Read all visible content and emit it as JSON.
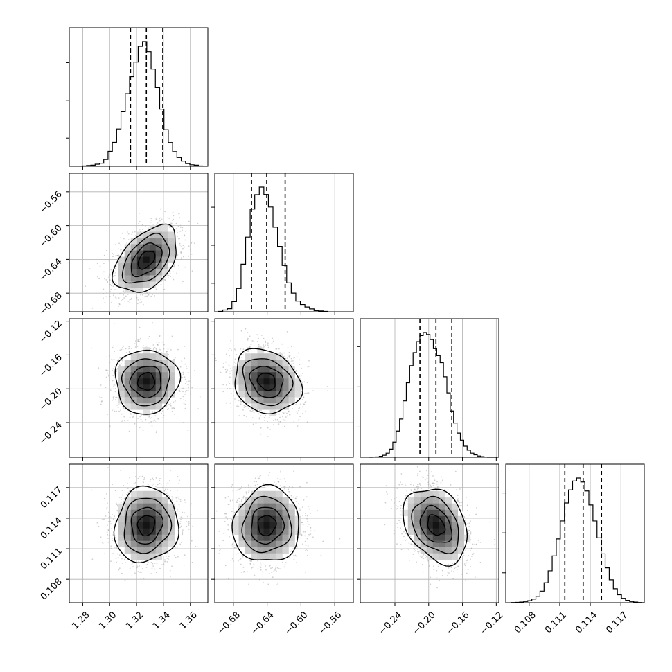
{
  "chart_data": {
    "type": "corner",
    "title": "",
    "parameters": [
      "",
      "",
      "",
      ""
    ],
    "grid": true,
    "quantile_lines": "dashed",
    "ranges": [
      [
        1.27,
        1.373
      ],
      [
        -0.702,
        -0.538
      ],
      [
        -0.281,
        -0.117
      ],
      [
        0.1057,
        0.1193
      ]
    ],
    "tick_labels": [
      [
        "1.28",
        "1.30",
        "1.32",
        "1.34",
        "1.36"
      ],
      [
        "−0.68",
        "−0.64",
        "−0.60",
        "−0.56"
      ],
      [
        "−0.24",
        "−0.20",
        "−0.16",
        "−0.12"
      ],
      [
        "0.108",
        "0.111",
        "0.114",
        "0.117"
      ]
    ],
    "tick_values": [
      [
        1.28,
        1.3,
        1.32,
        1.34,
        1.36
      ],
      [
        -0.68,
        -0.64,
        -0.6,
        -0.56
      ],
      [
        -0.24,
        -0.2,
        -0.16,
        -0.12
      ],
      [
        0.108,
        0.111,
        0.114,
        0.117
      ]
    ],
    "quantiles": [
      [
        1.3155,
        1.3273,
        1.3395
      ],
      [
        -0.6585,
        -0.6405,
        -0.6187
      ],
      [
        -0.2104,
        -0.1914,
        -0.1726
      ],
      [
        0.1115,
        0.1133,
        0.1151
      ]
    ],
    "histograms": [
      {
        "bin_edges": [
          1.2796,
          1.2828,
          1.286,
          1.2892,
          1.2924,
          1.2956,
          1.2988,
          1.302,
          1.3052,
          1.3084,
          1.3116,
          1.3148,
          1.318,
          1.3212,
          1.3244,
          1.3276,
          1.3308,
          1.334,
          1.3372,
          1.3404,
          1.3436,
          1.3468,
          1.35,
          1.3532,
          1.3564,
          1.3596,
          1.3628,
          1.366,
          1.3692
        ],
        "counts": [
          2,
          4,
          6,
          11,
          16,
          36,
          79,
          127,
          198,
          292,
          386,
          476,
          553,
          636,
          662,
          608,
          516,
          418,
          303,
          194,
          126,
          78,
          47,
          27,
          14,
          8,
          6,
          2
        ]
      },
      {
        "bin_edges": [
          -0.6979,
          -0.6925,
          -0.6871,
          -0.6817,
          -0.6763,
          -0.6709,
          -0.6655,
          -0.6601,
          -0.6547,
          -0.6493,
          -0.6439,
          -0.6385,
          -0.6331,
          -0.6277,
          -0.6223,
          -0.6169,
          -0.6115,
          -0.6061,
          -0.6007,
          -0.5953,
          -0.5899,
          -0.5845,
          -0.5791,
          -0.5737,
          -0.5683
        ],
        "counts": [
          2,
          9,
          16,
          53,
          123,
          250,
          393,
          540,
          616,
          656,
          617,
          551,
          445,
          344,
          243,
          152,
          98,
          56,
          38,
          25,
          15,
          6,
          4,
          2
        ]
      },
      {
        "bin_edges": [
          -0.2705,
          -0.2665,
          -0.2625,
          -0.2585,
          -0.2545,
          -0.2505,
          -0.2465,
          -0.2425,
          -0.2385,
          -0.2345,
          -0.2305,
          -0.2265,
          -0.2225,
          -0.2185,
          -0.2145,
          -0.2105,
          -0.2065,
          -0.2025,
          -0.1985,
          -0.1945,
          -0.1905,
          -0.1865,
          -0.1825,
          -0.1785,
          -0.1745,
          -0.1705,
          -0.1665,
          -0.1625,
          -0.1585,
          -0.1545,
          -0.1505,
          -0.1465,
          -0.1425,
          -0.1385,
          -0.1345,
          -0.1305,
          -0.1265,
          -0.1225,
          -0.1185
        ],
        "counts": [
          0,
          1,
          2,
          5,
          10,
          20,
          40,
          75,
          130,
          190,
          280,
          370,
          455,
          520,
          575,
          605,
          620,
          610,
          585,
          540,
          505,
          470,
          400,
          320,
          230,
          170,
          120,
          85,
          55,
          35,
          20,
          12,
          6,
          3,
          1,
          0,
          0,
          0
        ]
      },
      {
        "bin_edges": [
          0.10626,
          0.10666,
          0.10706,
          0.10746,
          0.10786,
          0.10826,
          0.10866,
          0.10906,
          0.10946,
          0.10986,
          0.11026,
          0.11066,
          0.11106,
          0.11146,
          0.11186,
          0.11226,
          0.11266,
          0.11306,
          0.11346,
          0.11386,
          0.11426,
          0.11466,
          0.11506,
          0.11546,
          0.11586,
          0.11626,
          0.11666,
          0.11706,
          0.11746,
          0.11786,
          0.11826,
          0.11866,
          0.11906,
          0.11932
        ],
        "counts": [
          1,
          2,
          3,
          6,
          10,
          18,
          32,
          58,
          100,
          160,
          235,
          320,
          410,
          500,
          565,
          610,
          625,
          605,
          560,
          490,
          410,
          325,
          245,
          175,
          115,
          70,
          40,
          22,
          12,
          6,
          3,
          1,
          0
        ]
      }
    ],
    "joint": {
      "1_0": {
        "mean_x": 1.3273,
        "mean_y": -0.6405,
        "sd_x": 0.0115,
        "sd_y": 0.0192,
        "rho": 0.45
      },
      "2_0": {
        "mean_x": 1.3273,
        "mean_y": -0.1914,
        "sd_x": 0.0115,
        "sd_y": 0.0185,
        "rho": 0.02
      },
      "2_1": {
        "mean_x": -0.6405,
        "mean_y": -0.1914,
        "sd_x": 0.0192,
        "sd_y": 0.0185,
        "rho": -0.18
      },
      "3_0": {
        "mean_x": 1.3273,
        "mean_y": 0.1133,
        "sd_x": 0.0115,
        "sd_y": 0.0018,
        "rho": 0.08
      },
      "3_1": {
        "mean_x": -0.6405,
        "mean_y": 0.1133,
        "sd_x": 0.0192,
        "sd_y": 0.0018,
        "rho": 0.05
      },
      "3_2": {
        "mean_x": -0.1914,
        "mean_y": 0.1133,
        "sd_x": 0.0185,
        "sd_y": 0.0018,
        "rho": -0.3
      }
    },
    "colors": {
      "line": "#000000",
      "grid": "#b0b0b0",
      "scatter": "#aaaaaa",
      "density": "#000000"
    }
  }
}
